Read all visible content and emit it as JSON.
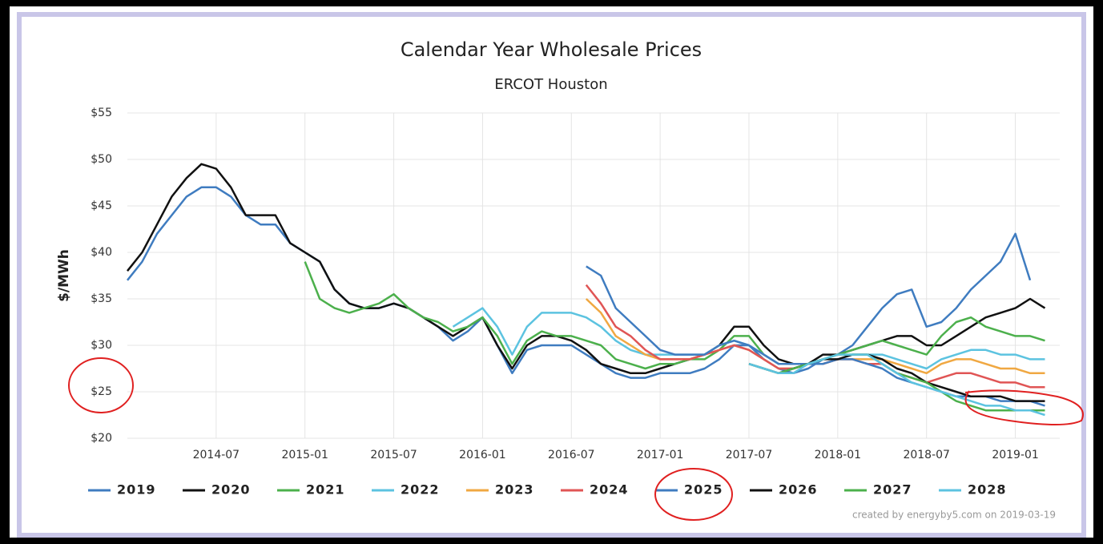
{
  "chart_data": {
    "type": "line",
    "title": "Calendar Year Wholesale Prices",
    "subtitle": "ERCOT Houston",
    "y_label": "$/MWh",
    "credit": "created by energyby5.com on 2019-03-19",
    "x": [
      "2014-01",
      "2014-02",
      "2014-03",
      "2014-04",
      "2014-05",
      "2014-06",
      "2014-07",
      "2014-08",
      "2014-09",
      "2014-10",
      "2014-11",
      "2014-12",
      "2015-01",
      "2015-02",
      "2015-03",
      "2015-04",
      "2015-05",
      "2015-06",
      "2015-07",
      "2015-08",
      "2015-09",
      "2015-10",
      "2015-11",
      "2015-12",
      "2016-01",
      "2016-02",
      "2016-03",
      "2016-04",
      "2016-05",
      "2016-06",
      "2016-07",
      "2016-08",
      "2016-09",
      "2016-10",
      "2016-11",
      "2016-12",
      "2017-01",
      "2017-02",
      "2017-03",
      "2017-04",
      "2017-05",
      "2017-06",
      "2017-07",
      "2017-08",
      "2017-09",
      "2017-10",
      "2017-11",
      "2017-12",
      "2018-01",
      "2018-02",
      "2018-03",
      "2018-04",
      "2018-05",
      "2018-06",
      "2018-07",
      "2018-08",
      "2018-09",
      "2018-10",
      "2018-11",
      "2018-12",
      "2019-01",
      "2019-02",
      "2019-03"
    ],
    "xlim": [
      "2014-01",
      "2019-04"
    ],
    "xticks": [
      "2014-07",
      "2015-01",
      "2015-07",
      "2016-01",
      "2016-07",
      "2017-01",
      "2017-07",
      "2018-01",
      "2018-07",
      "2019-01"
    ],
    "ylim": [
      20,
      55
    ],
    "yticks": [
      {
        "value": 20,
        "label": "$20"
      },
      {
        "value": 25,
        "label": "$25"
      },
      {
        "value": 30,
        "label": "$30"
      },
      {
        "value": 35,
        "label": "$35"
      },
      {
        "value": 40,
        "label": "$40"
      },
      {
        "value": 45,
        "label": "$45"
      },
      {
        "value": 50,
        "label": "$50"
      },
      {
        "value": 55,
        "label": "$55"
      }
    ],
    "grid": true,
    "legend": "bottom",
    "series": [
      {
        "name": "2019",
        "color": "#3f7cc0",
        "values": [
          37,
          39,
          42,
          44,
          46,
          47,
          47,
          46,
          44,
          43,
          43,
          41,
          40,
          39,
          36,
          34.5,
          34,
          34,
          34.5,
          34,
          33,
          32,
          30.5,
          31.5,
          33,
          30,
          27,
          29.5,
          30,
          30,
          30,
          29,
          28,
          27,
          26.5,
          26.5,
          27,
          27,
          27,
          27.5,
          28.5,
          30,
          30,
          28.5,
          27.5,
          27,
          27.5,
          28.5,
          29,
          30,
          32,
          34,
          35.5,
          36,
          32,
          32.5,
          34,
          36,
          37.5,
          39,
          42,
          37,
          null
        ]
      },
      {
        "name": "2020",
        "color": "#111111",
        "values": [
          38,
          40,
          43,
          46,
          48,
          49.5,
          49,
          47,
          44,
          44,
          44,
          41,
          40,
          39,
          36,
          34.5,
          34,
          34,
          34.5,
          34,
          33,
          32,
          31,
          32,
          33,
          30,
          27.5,
          30,
          31,
          31,
          30.5,
          29.5,
          28,
          27.5,
          27,
          27,
          27.5,
          28,
          28.5,
          29,
          30,
          32,
          32,
          30,
          28.5,
          28,
          28,
          29,
          29,
          29.5,
          30,
          30.5,
          31,
          31,
          30,
          30,
          31,
          32,
          33,
          33.5,
          34,
          35,
          34
        ]
      },
      {
        "name": "2021",
        "color": "#4cb04c",
        "values": [
          null,
          null,
          null,
          null,
          null,
          null,
          null,
          null,
          null,
          null,
          null,
          null,
          39,
          35,
          34,
          33.5,
          34,
          34.5,
          35.5,
          34,
          33,
          32.5,
          31.5,
          32,
          33,
          31,
          28,
          30.5,
          31.5,
          31,
          31,
          30.5,
          30,
          28.5,
          28,
          27.5,
          28,
          28,
          28.5,
          28.5,
          29.5,
          31,
          31,
          29,
          28,
          28,
          28,
          28.5,
          29,
          29.5,
          30,
          30.5,
          30,
          29.5,
          29,
          31,
          32.5,
          33,
          32,
          31.5,
          31,
          31,
          30.5
        ]
      },
      {
        "name": "2022",
        "color": "#5cc3e0",
        "values": [
          null,
          null,
          null,
          null,
          null,
          null,
          null,
          null,
          null,
          null,
          null,
          null,
          null,
          null,
          null,
          null,
          null,
          null,
          null,
          null,
          null,
          null,
          32,
          33,
          34,
          32,
          29,
          32,
          33.5,
          33.5,
          33.5,
          33,
          32,
          30.5,
          29.5,
          29,
          29,
          29,
          29,
          29,
          30,
          30.5,
          30,
          29,
          28,
          28,
          28,
          28,
          28.5,
          29,
          29,
          29,
          28.5,
          28,
          27.5,
          28.5,
          29,
          29.5,
          29.5,
          29,
          29,
          28.5,
          28.5
        ]
      },
      {
        "name": "2023",
        "color": "#f0a842",
        "values": [
          null,
          null,
          null,
          null,
          null,
          null,
          null,
          null,
          null,
          null,
          null,
          null,
          null,
          null,
          null,
          null,
          null,
          null,
          null,
          null,
          null,
          null,
          null,
          null,
          null,
          null,
          null,
          null,
          null,
          null,
          null,
          35,
          33.5,
          31,
          30,
          29,
          28.5,
          28.5,
          28.5,
          29,
          29.5,
          30,
          29.5,
          28.5,
          27.5,
          27.5,
          28,
          28,
          28.5,
          28.5,
          28.5,
          28.5,
          28,
          27.5,
          27,
          28,
          28.5,
          28.5,
          28,
          27.5,
          27.5,
          27,
          27
        ]
      },
      {
        "name": "2024",
        "color": "#e05555",
        "values": [
          null,
          null,
          null,
          null,
          null,
          null,
          null,
          null,
          null,
          null,
          null,
          null,
          null,
          null,
          null,
          null,
          null,
          null,
          null,
          null,
          null,
          null,
          null,
          null,
          null,
          null,
          null,
          null,
          null,
          null,
          null,
          36.5,
          34.5,
          32,
          31,
          29.5,
          28.5,
          28.5,
          28.5,
          29,
          29.5,
          30,
          29.5,
          28.5,
          27.5,
          27.5,
          28,
          28,
          28.5,
          28.5,
          28,
          28,
          27,
          26.5,
          26,
          26.5,
          27,
          27,
          26.5,
          26,
          26,
          25.5,
          25.5
        ]
      },
      {
        "name": "2025",
        "color": "#3f7cc0",
        "values": [
          null,
          null,
          null,
          null,
          null,
          null,
          null,
          null,
          null,
          null,
          null,
          null,
          null,
          null,
          null,
          null,
          null,
          null,
          null,
          null,
          null,
          null,
          null,
          null,
          null,
          null,
          null,
          null,
          null,
          null,
          null,
          38.5,
          37.5,
          34,
          32.5,
          31,
          29.5,
          29,
          29,
          29,
          30,
          30.5,
          30,
          29,
          28,
          28,
          28,
          28,
          28.5,
          28.5,
          28,
          27.5,
          26.5,
          26,
          25.5,
          25,
          24.5,
          24.5,
          24.5,
          24,
          24,
          24,
          23.5
        ]
      },
      {
        "name": "2026",
        "color": "#111111",
        "values": [
          null,
          null,
          null,
          null,
          null,
          null,
          null,
          null,
          null,
          null,
          null,
          null,
          null,
          null,
          null,
          null,
          null,
          null,
          null,
          null,
          null,
          null,
          null,
          null,
          null,
          null,
          null,
          null,
          null,
          null,
          null,
          null,
          null,
          null,
          null,
          null,
          null,
          null,
          null,
          null,
          null,
          null,
          28,
          27.5,
          27,
          27.5,
          28,
          28.5,
          28.5,
          29,
          29,
          28.5,
          27.5,
          27,
          26,
          25.5,
          25,
          24.5,
          24.5,
          24.5,
          24,
          24,
          24
        ]
      },
      {
        "name": "2027",
        "color": "#4cb04c",
        "values": [
          null,
          null,
          null,
          null,
          null,
          null,
          null,
          null,
          null,
          null,
          null,
          null,
          null,
          null,
          null,
          null,
          null,
          null,
          null,
          null,
          null,
          null,
          null,
          null,
          null,
          null,
          null,
          null,
          null,
          null,
          null,
          null,
          null,
          null,
          null,
          null,
          null,
          null,
          null,
          null,
          null,
          null,
          28,
          27.5,
          27,
          27.5,
          28,
          28.5,
          29,
          29,
          29,
          28,
          27,
          26.5,
          26,
          25,
          24,
          23.5,
          23,
          23,
          23,
          23,
          23
        ]
      },
      {
        "name": "2028",
        "color": "#5cc3e0",
        "values": [
          null,
          null,
          null,
          null,
          null,
          null,
          null,
          null,
          null,
          null,
          null,
          null,
          null,
          null,
          null,
          null,
          null,
          null,
          null,
          null,
          null,
          null,
          null,
          null,
          null,
          null,
          null,
          null,
          null,
          null,
          null,
          null,
          null,
          null,
          null,
          null,
          null,
          null,
          null,
          null,
          null,
          null,
          28,
          27.5,
          27,
          27,
          28,
          28.5,
          29,
          29,
          29,
          28,
          27,
          26,
          25.5,
          25,
          24.5,
          24,
          23.5,
          23.5,
          23,
          23,
          22.5
        ]
      }
    ]
  }
}
